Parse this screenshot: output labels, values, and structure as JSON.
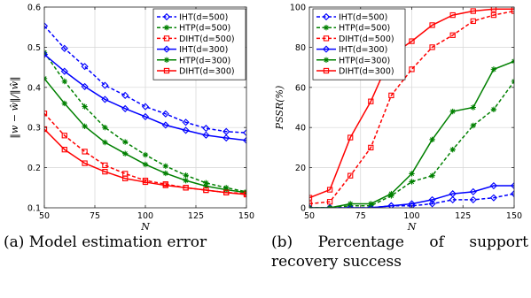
{
  "chart_data": [
    {
      "type": "line",
      "xlabel": "N",
      "ylabel": "‖w − ŵ‖/‖ŵ‖",
      "xlim": [
        50,
        150
      ],
      "ylim": [
        0.1,
        0.6
      ],
      "xticks": [
        50,
        75,
        100,
        125,
        150
      ],
      "yticks": [
        0.1,
        0.2,
        0.3,
        0.4,
        0.5,
        0.6
      ],
      "grid": true,
      "legend_position": "top-right",
      "x": [
        50,
        60,
        70,
        80,
        90,
        100,
        110,
        120,
        130,
        140,
        150
      ],
      "series": [
        {
          "name": "IHT(d=500)",
          "color": "#0000ff",
          "dash": true,
          "marker": "diamond",
          "values": [
            0.553,
            0.497,
            0.452,
            0.405,
            0.38,
            0.352,
            0.334,
            0.313,
            0.298,
            0.29,
            0.287
          ]
        },
        {
          "name": "HTP(d=500)",
          "color": "#008000",
          "dash": true,
          "marker": "star",
          "values": [
            0.487,
            0.415,
            0.352,
            0.3,
            0.264,
            0.232,
            0.204,
            0.181,
            0.162,
            0.15,
            0.14
          ]
        },
        {
          "name": "DIHT(d=500)",
          "color": "#ff0000",
          "dash": true,
          "marker": "square",
          "values": [
            0.335,
            0.28,
            0.24,
            0.206,
            0.185,
            0.168,
            0.159,
            0.15,
            0.144,
            0.138,
            0.136
          ]
        },
        {
          "name": "IHT(d=300)",
          "color": "#0000ff",
          "dash": false,
          "marker": "diamond",
          "values": [
            0.482,
            0.44,
            0.402,
            0.37,
            0.347,
            0.327,
            0.306,
            0.293,
            0.281,
            0.274,
            0.268
          ]
        },
        {
          "name": "HTP(d=300)",
          "color": "#008000",
          "dash": false,
          "marker": "star",
          "values": [
            0.422,
            0.36,
            0.303,
            0.263,
            0.235,
            0.208,
            0.186,
            0.168,
            0.154,
            0.145,
            0.138
          ]
        },
        {
          "name": "DIHT(d=300)",
          "color": "#ff0000",
          "dash": false,
          "marker": "square",
          "values": [
            0.296,
            0.245,
            0.211,
            0.19,
            0.173,
            0.164,
            0.156,
            0.15,
            0.144,
            0.138,
            0.133
          ]
        }
      ]
    },
    {
      "type": "line",
      "xlabel": "N",
      "ylabel": "PSSR(%)",
      "xlim": [
        50,
        150
      ],
      "ylim": [
        0,
        100
      ],
      "xticks": [
        50,
        75,
        100,
        125,
        150
      ],
      "yticks": [
        0,
        20,
        40,
        60,
        80,
        100
      ],
      "grid": true,
      "legend_position": "top-left",
      "x": [
        50,
        60,
        70,
        80,
        90,
        100,
        110,
        120,
        130,
        140,
        150
      ],
      "series": [
        {
          "name": "IHT(d=500)",
          "color": "#0000ff",
          "dash": true,
          "marker": "diamond",
          "values": [
            0,
            0,
            0,
            0,
            1,
            1,
            2,
            4,
            4,
            5,
            7
          ]
        },
        {
          "name": "HTP(d=500)",
          "color": "#008000",
          "dash": true,
          "marker": "star",
          "values": [
            0,
            0,
            1,
            1,
            6,
            13,
            16,
            29,
            41,
            49,
            63
          ]
        },
        {
          "name": "DIHT(d=500)",
          "color": "#ff0000",
          "dash": true,
          "marker": "square",
          "values": [
            2,
            3,
            16,
            30,
            56,
            69,
            80,
            86,
            93,
            96,
            98
          ]
        },
        {
          "name": "IHT(d=300)",
          "color": "#0000ff",
          "dash": false,
          "marker": "diamond",
          "values": [
            0,
            0,
            0,
            0,
            1,
            2,
            4,
            7,
            8,
            11,
            11
          ]
        },
        {
          "name": "HTP(d=300)",
          "color": "#008000",
          "dash": false,
          "marker": "star",
          "values": [
            0,
            0,
            2,
            2,
            7,
            17,
            34,
            48,
            50,
            69,
            73
          ]
        },
        {
          "name": "DIHT(d=300)",
          "color": "#ff0000",
          "dash": false,
          "marker": "square",
          "values": [
            5,
            9,
            35,
            53,
            76,
            83,
            91,
            96,
            98,
            99,
            99
          ]
        }
      ]
    }
  ],
  "captions": {
    "a": "(a) Model estimation error",
    "b": "(b) Percentage of support recovery success"
  }
}
